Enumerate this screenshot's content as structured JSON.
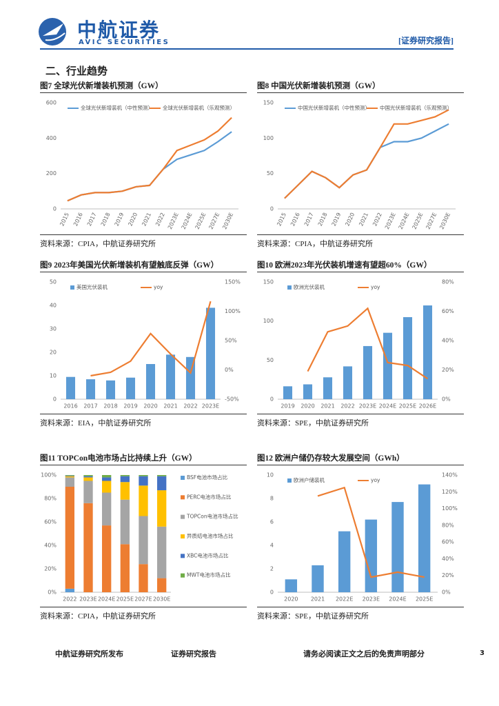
{
  "header": {
    "logo": "中航证券",
    "logo_en": "AVIC SECURITIES",
    "tag": "[证券研究报告]"
  },
  "section_title": "二、行业趋势",
  "chart_data": [
    {
      "type": "line",
      "title": "图7 全球光伏新增装机预测（GW）",
      "source": "资料来源：CPIA，中航证券研究所",
      "categories": [
        "2015",
        "2016",
        "2017",
        "2018",
        "2019",
        "2020",
        "2021",
        "2022",
        "2023E",
        "2024E",
        "2025E",
        "2027E",
        "2030E"
      ],
      "ylim": [
        0,
        600
      ],
      "yticks": [
        0,
        200,
        400,
        600
      ],
      "grid": false,
      "legend": "top",
      "series": [
        {
          "name": "全球光伏新增装机（中性预测）",
          "color": "#5b9bd5",
          "values": [
            46,
            79,
            92,
            92,
            100,
            125,
            133,
            225,
            280,
            305,
            330,
            380,
            436
          ]
        },
        {
          "name": "全球光伏新增装机（乐观预测）",
          "color": "#ed7d31",
          "values": [
            46,
            79,
            92,
            92,
            100,
            125,
            133,
            225,
            330,
            360,
            390,
            440,
            516
          ]
        }
      ]
    },
    {
      "type": "line",
      "title": "图8 中国光伏新增装机预测（GW）",
      "source": "资料来源：CPIA，中航证券研究所",
      "categories": [
        "2015",
        "2016",
        "2017",
        "2018",
        "2019",
        "2020",
        "2021",
        "2022",
        "2023E",
        "2024E",
        "2025E",
        "2027E",
        "2030E"
      ],
      "ylim": [
        0,
        150
      ],
      "yticks": [
        0,
        50,
        100,
        150
      ],
      "grid": false,
      "legend": "top",
      "series": [
        {
          "name": "中国光伏新增装机（中性预测）",
          "color": "#5b9bd5",
          "values": [
            15,
            34,
            53,
            44,
            30,
            48,
            55,
            87,
            95,
            95,
            100,
            110,
            120
          ]
        },
        {
          "name": "中国光伏新增装机（乐观预测）",
          "color": "#ed7d31",
          "values": [
            15,
            34,
            53,
            44,
            30,
            48,
            55,
            87,
            120,
            120,
            125,
            130,
            140
          ]
        }
      ]
    },
    {
      "type": "bar",
      "title": "图9 2023年美国光伏新增装机有望触底反弹（GW）",
      "source": "资料来源：EIA，中航证券研究所",
      "categories": [
        "2016",
        "2017",
        "2018",
        "2019",
        "2020",
        "2021",
        "2022",
        "2023E"
      ],
      "ylim": [
        0,
        50
      ],
      "yticks": [
        0,
        10,
        20,
        30,
        40,
        50
      ],
      "y2lim": [
        -50,
        150
      ],
      "y2ticks": [
        {
          "value": -50,
          "label": "-50%"
        },
        {
          "value": 0,
          "label": "0%"
        },
        {
          "value": 50,
          "label": "50%"
        },
        {
          "value": 100,
          "label": "100%"
        },
        {
          "value": 150,
          "label": "150%"
        }
      ],
      "grid": false,
      "legend": "top",
      "series": [
        {
          "name": "美国光伏装机",
          "type": "bar",
          "color": "#5b9bd5",
          "values": [
            9.5,
            8.5,
            8,
            9.2,
            15,
            19,
            18,
            39
          ]
        },
        {
          "name": "yoy",
          "type": "line",
          "axis": "y2",
          "color": "#ed7d31",
          "values": [
            null,
            -10,
            -4,
            15,
            62,
            27,
            -5,
            117
          ]
        }
      ]
    },
    {
      "type": "bar",
      "title": "图10 欧洲2023年光伏装机增速有望超60%（GW）",
      "source": "资料来源：SPE，中航证券研究所",
      "categories": [
        "2019",
        "2020",
        "2021",
        "2022",
        "2023E",
        "2024E",
        "2025E",
        "2026E"
      ],
      "ylim": [
        0,
        150
      ],
      "yticks": [
        0,
        50,
        100,
        150
      ],
      "y2lim": [
        0,
        80
      ],
      "y2ticks": [
        {
          "value": 0,
          "label": "0%"
        },
        {
          "value": 20,
          "label": "20%"
        },
        {
          "value": 40,
          "label": "40%"
        },
        {
          "value": 60,
          "label": "60%"
        },
        {
          "value": 80,
          "label": "80%"
        }
      ],
      "grid": false,
      "legend": "top",
      "series": [
        {
          "name": "欧洲光伏装机",
          "type": "bar",
          "color": "#5b9bd5",
          "values": [
            16.5,
            19,
            28,
            42,
            68,
            85,
            105,
            120
          ]
        },
        {
          "name": "yoy",
          "type": "line",
          "axis": "y2",
          "color": "#ed7d31",
          "values": [
            null,
            19,
            46,
            50,
            62,
            25,
            23,
            14
          ]
        }
      ]
    },
    {
      "type": "stacked_bar",
      "title": "图11 TOPCon电池市场占比持续上升（GW）",
      "source": "资料来源：CPIA，中航证券研究所",
      "categories": [
        "2022",
        "2023E",
        "2024E",
        "2025E",
        "2027E",
        "2030E"
      ],
      "ylim": [
        0,
        100
      ],
      "yticks": [
        {
          "value": 0,
          "label": "0%"
        },
        {
          "value": 20,
          "label": "20%"
        },
        {
          "value": 40,
          "label": "40%"
        },
        {
          "value": 60,
          "label": "60%"
        },
        {
          "value": 80,
          "label": "80%"
        },
        {
          "value": 100,
          "label": "100%"
        }
      ],
      "grid": false,
      "legend": "right",
      "series": [
        {
          "name": "BSF电池市场占比",
          "color": "#5b9bd5",
          "values": [
            3,
            0,
            0,
            0,
            0,
            0
          ]
        },
        {
          "name": "PERC电池市场占比",
          "color": "#ed7d31",
          "values": [
            87,
            76,
            57,
            41,
            24,
            12
          ]
        },
        {
          "name": "TOPCon电池市场占比",
          "color": "#a5a5a5",
          "values": [
            8,
            19,
            28,
            38,
            41,
            44
          ]
        },
        {
          "name": "异质结电池市场占比",
          "color": "#ffc000",
          "values": [
            1,
            3,
            10,
            15,
            26,
            31
          ]
        },
        {
          "name": "XBC电池市场占比",
          "color": "#4472c4",
          "values": [
            0.5,
            1,
            3,
            5,
            8,
            12
          ]
        },
        {
          "name": "MWT电池市场占比",
          "color": "#70ad47",
          "values": [
            0.5,
            1,
            2,
            1,
            1,
            1
          ]
        }
      ]
    },
    {
      "type": "bar",
      "title": "图12 欧洲户储仍存较大发展空间（GWh）",
      "source": "资料来源：SPE，中航证券研究所",
      "categories": [
        "2020",
        "2021",
        "2022E",
        "2023E",
        "2024E",
        "2025E"
      ],
      "ylim": [
        0,
        10
      ],
      "yticks": [
        0,
        2,
        4,
        6,
        8,
        10
      ],
      "y2lim": [
        0,
        140
      ],
      "y2ticks": [
        {
          "value": 0,
          "label": "0%"
        },
        {
          "value": 20,
          "label": "20%"
        },
        {
          "value": 40,
          "label": "40%"
        },
        {
          "value": 60,
          "label": "60%"
        },
        {
          "value": 80,
          "label": "80%"
        },
        {
          "value": 100,
          "label": "100%"
        },
        {
          "value": 120,
          "label": "120%"
        },
        {
          "value": 140,
          "label": "140%"
        }
      ],
      "grid": false,
      "legend": "top",
      "series": [
        {
          "name": "欧洲户储装机",
          "type": "bar",
          "color": "#5b9bd5",
          "values": [
            1.1,
            2.3,
            5.2,
            6.2,
            7.7,
            9.2
          ]
        },
        {
          "name": "yoy",
          "type": "line",
          "axis": "y2",
          "color": "#ed7d31",
          "values": [
            null,
            115,
            125,
            18,
            24,
            18
          ]
        }
      ]
    }
  ],
  "footer": {
    "left": "中航证券研究所发布",
    "center": "证券研究报告",
    "right": "请务必阅读正文之后的免责声明部分",
    "page": "3"
  }
}
